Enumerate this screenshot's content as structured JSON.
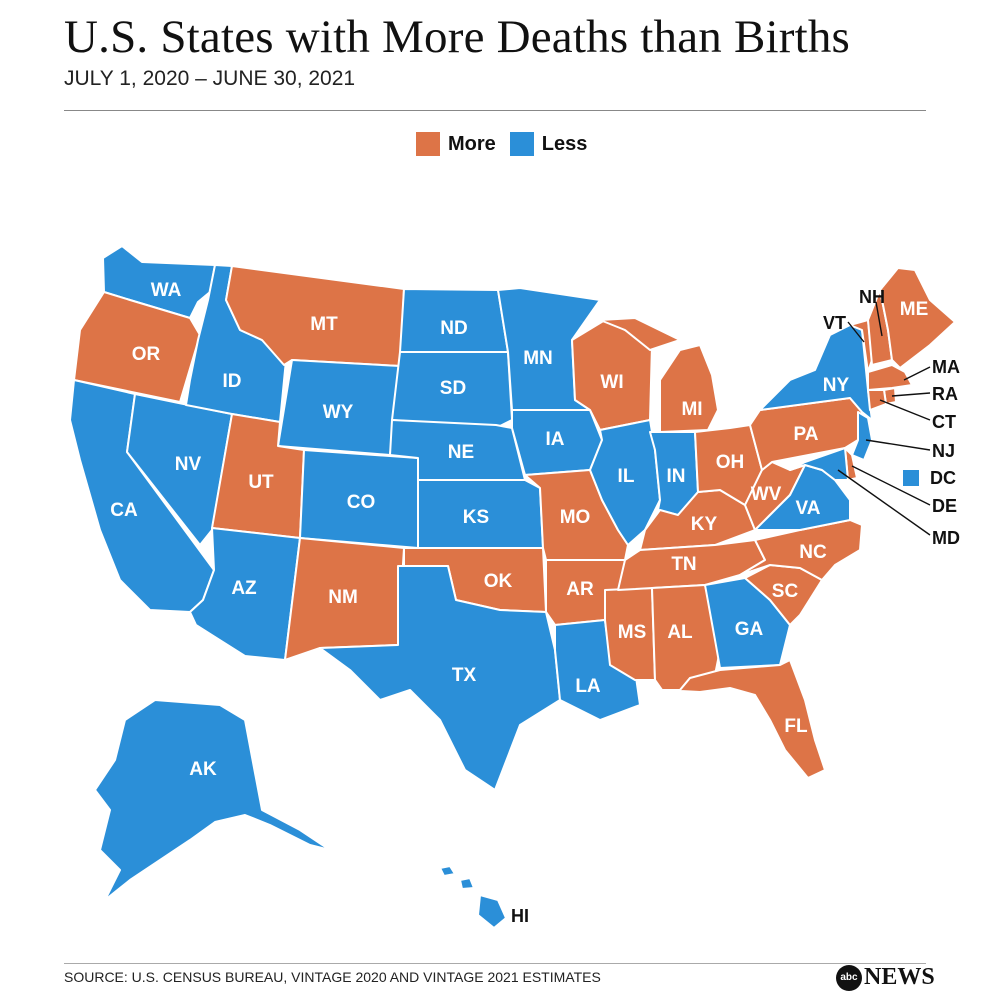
{
  "title": "U.S. States with More Deaths than Births",
  "subtitle": "JULY 1, 2020 – JUNE 30, 2021",
  "legend": [
    {
      "key": "more",
      "label": "More",
      "color": "#DD7447"
    },
    {
      "key": "less",
      "label": "Less",
      "color": "#2B8FD8"
    }
  ],
  "source": "SOURCE: U.S. CENSUS BUREAU, VINTAGE 2020 AND VINTAGE 2021 ESTIMATES",
  "brand": {
    "mark": "abc",
    "text": "NEWS"
  },
  "states": [
    {
      "abbr": "WA",
      "status": "less"
    },
    {
      "abbr": "OR",
      "status": "more"
    },
    {
      "abbr": "CA",
      "status": "less"
    },
    {
      "abbr": "NV",
      "status": "less"
    },
    {
      "abbr": "ID",
      "status": "less"
    },
    {
      "abbr": "MT",
      "status": "more"
    },
    {
      "abbr": "WY",
      "status": "less"
    },
    {
      "abbr": "UT",
      "status": "more"
    },
    {
      "abbr": "AZ",
      "status": "less"
    },
    {
      "abbr": "NM",
      "status": "more"
    },
    {
      "abbr": "CO",
      "status": "less"
    },
    {
      "abbr": "ND",
      "status": "less"
    },
    {
      "abbr": "SD",
      "status": "less"
    },
    {
      "abbr": "NE",
      "status": "less"
    },
    {
      "abbr": "KS",
      "status": "less"
    },
    {
      "abbr": "OK",
      "status": "more"
    },
    {
      "abbr": "TX",
      "status": "less"
    },
    {
      "abbr": "MN",
      "status": "less"
    },
    {
      "abbr": "IA",
      "status": "less"
    },
    {
      "abbr": "MO",
      "status": "more"
    },
    {
      "abbr": "AR",
      "status": "more"
    },
    {
      "abbr": "LA",
      "status": "less"
    },
    {
      "abbr": "WI",
      "status": "more"
    },
    {
      "abbr": "IL",
      "status": "less"
    },
    {
      "abbr": "MS",
      "status": "more"
    },
    {
      "abbr": "MI",
      "status": "more"
    },
    {
      "abbr": "IN",
      "status": "less"
    },
    {
      "abbr": "KY",
      "status": "more"
    },
    {
      "abbr": "TN",
      "status": "more"
    },
    {
      "abbr": "AL",
      "status": "more"
    },
    {
      "abbr": "OH",
      "status": "more"
    },
    {
      "abbr": "WV",
      "status": "more"
    },
    {
      "abbr": "GA",
      "status": "less"
    },
    {
      "abbr": "FL",
      "status": "more"
    },
    {
      "abbr": "SC",
      "status": "more"
    },
    {
      "abbr": "NC",
      "status": "more"
    },
    {
      "abbr": "VA",
      "status": "less"
    },
    {
      "abbr": "PA",
      "status": "more"
    },
    {
      "abbr": "NY",
      "status": "less"
    },
    {
      "abbr": "VT",
      "status": "more"
    },
    {
      "abbr": "NH",
      "status": "more"
    },
    {
      "abbr": "ME",
      "status": "more"
    },
    {
      "abbr": "MA",
      "status": "more"
    },
    {
      "abbr": "RA",
      "status": "more"
    },
    {
      "abbr": "CT",
      "status": "more"
    },
    {
      "abbr": "NJ",
      "status": "less"
    },
    {
      "abbr": "DE",
      "status": "more"
    },
    {
      "abbr": "MD",
      "status": "less"
    },
    {
      "abbr": "DC",
      "status": "less"
    },
    {
      "abbr": "AK",
      "status": "less"
    },
    {
      "abbr": "HI",
      "status": "less"
    }
  ]
}
